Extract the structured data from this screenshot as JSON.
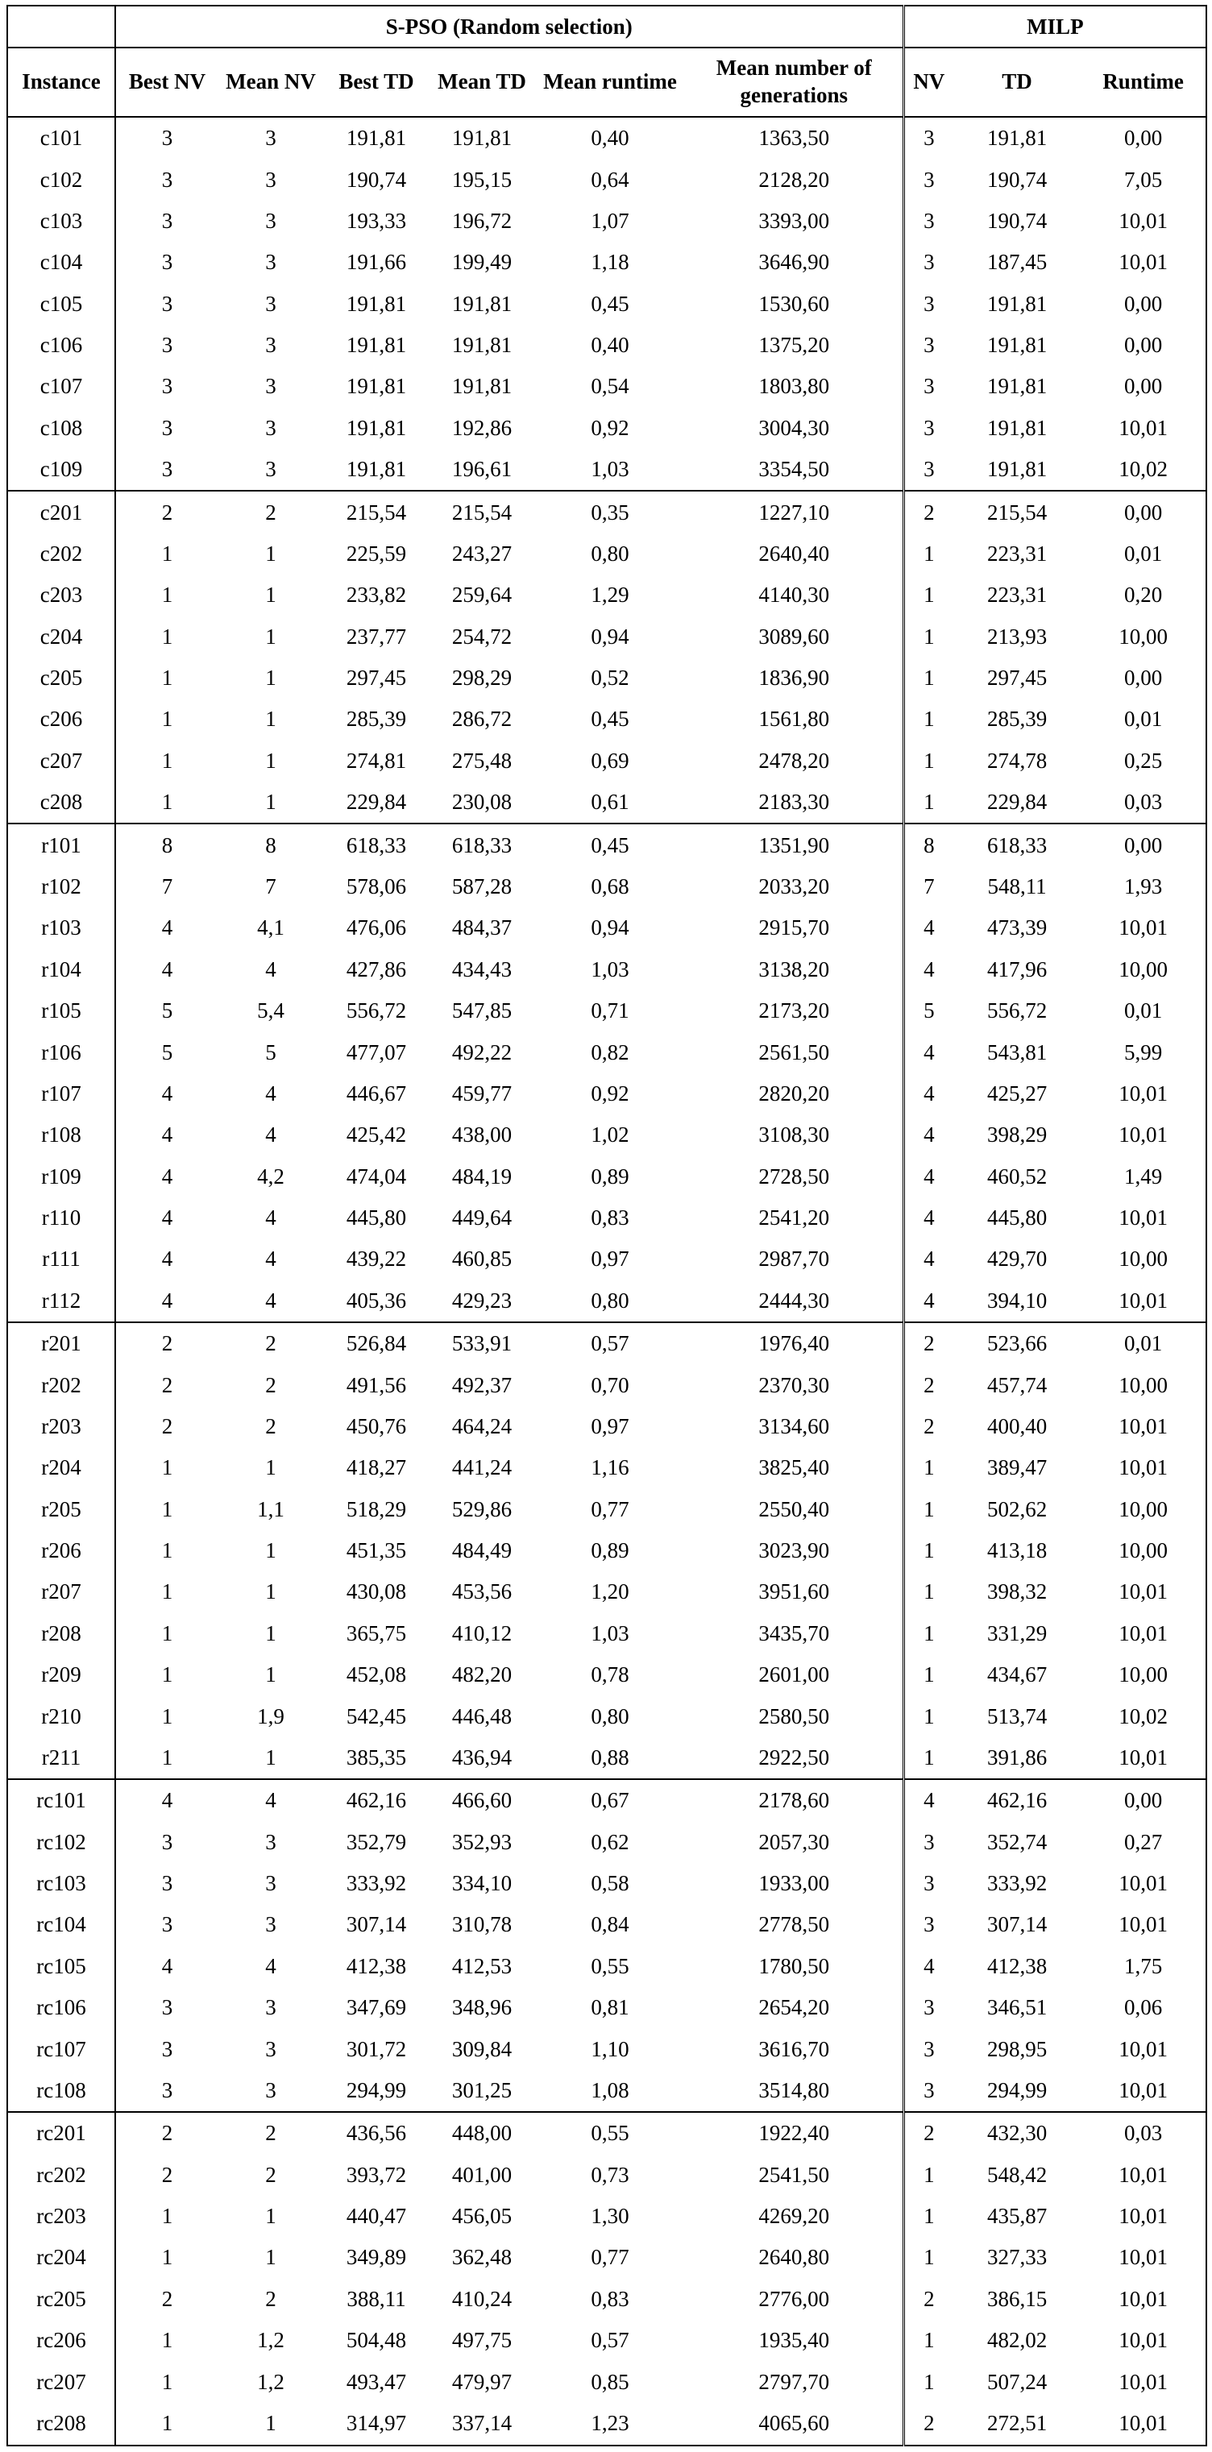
{
  "headers": {
    "group_spso": "S-PSO (Random selection)",
    "group_milp": "MILP",
    "instance": "Instance",
    "best_nv": "Best NV",
    "mean_nv": "Mean NV",
    "best_td": "Best TD",
    "mean_td": "Mean TD",
    "mean_runtime": "Mean runtime",
    "mean_generations": "Mean number of generations",
    "milp_nv": "NV",
    "milp_td": "TD",
    "milp_runtime": "Runtime"
  },
  "rows": [
    [
      "c101",
      "3",
      "3",
      "191,81",
      "191,81",
      "0,40",
      "1363,50",
      "3",
      "191,81",
      "0,00"
    ],
    [
      "c102",
      "3",
      "3",
      "190,74",
      "195,15",
      "0,64",
      "2128,20",
      "3",
      "190,74",
      "7,05"
    ],
    [
      "c103",
      "3",
      "3",
      "193,33",
      "196,72",
      "1,07",
      "3393,00",
      "3",
      "190,74",
      "10,01"
    ],
    [
      "c104",
      "3",
      "3",
      "191,66",
      "199,49",
      "1,18",
      "3646,90",
      "3",
      "187,45",
      "10,01"
    ],
    [
      "c105",
      "3",
      "3",
      "191,81",
      "191,81",
      "0,45",
      "1530,60",
      "3",
      "191,81",
      "0,00"
    ],
    [
      "c106",
      "3",
      "3",
      "191,81",
      "191,81",
      "0,40",
      "1375,20",
      "3",
      "191,81",
      "0,00"
    ],
    [
      "c107",
      "3",
      "3",
      "191,81",
      "191,81",
      "0,54",
      "1803,80",
      "3",
      "191,81",
      "0,00"
    ],
    [
      "c108",
      "3",
      "3",
      "191,81",
      "192,86",
      "0,92",
      "3004,30",
      "3",
      "191,81",
      "10,01"
    ],
    [
      "c109",
      "3",
      "3",
      "191,81",
      "196,61",
      "1,03",
      "3354,50",
      "3",
      "191,81",
      "10,02"
    ],
    [
      "c201",
      "2",
      "2",
      "215,54",
      "215,54",
      "0,35",
      "1227,10",
      "2",
      "215,54",
      "0,00"
    ],
    [
      "c202",
      "1",
      "1",
      "225,59",
      "243,27",
      "0,80",
      "2640,40",
      "1",
      "223,31",
      "0,01"
    ],
    [
      "c203",
      "1",
      "1",
      "233,82",
      "259,64",
      "1,29",
      "4140,30",
      "1",
      "223,31",
      "0,20"
    ],
    [
      "c204",
      "1",
      "1",
      "237,77",
      "254,72",
      "0,94",
      "3089,60",
      "1",
      "213,93",
      "10,00"
    ],
    [
      "c205",
      "1",
      "1",
      "297,45",
      "298,29",
      "0,52",
      "1836,90",
      "1",
      "297,45",
      "0,00"
    ],
    [
      "c206",
      "1",
      "1",
      "285,39",
      "286,72",
      "0,45",
      "1561,80",
      "1",
      "285,39",
      "0,01"
    ],
    [
      "c207",
      "1",
      "1",
      "274,81",
      "275,48",
      "0,69",
      "2478,20",
      "1",
      "274,78",
      "0,25"
    ],
    [
      "c208",
      "1",
      "1",
      "229,84",
      "230,08",
      "0,61",
      "2183,30",
      "1",
      "229,84",
      "0,03"
    ],
    [
      "r101",
      "8",
      "8",
      "618,33",
      "618,33",
      "0,45",
      "1351,90",
      "8",
      "618,33",
      "0,00"
    ],
    [
      "r102",
      "7",
      "7",
      "578,06",
      "587,28",
      "0,68",
      "2033,20",
      "7",
      "548,11",
      "1,93"
    ],
    [
      "r103",
      "4",
      "4,1",
      "476,06",
      "484,37",
      "0,94",
      "2915,70",
      "4",
      "473,39",
      "10,01"
    ],
    [
      "r104",
      "4",
      "4",
      "427,86",
      "434,43",
      "1,03",
      "3138,20",
      "4",
      "417,96",
      "10,00"
    ],
    [
      "r105",
      "5",
      "5,4",
      "556,72",
      "547,85",
      "0,71",
      "2173,20",
      "5",
      "556,72",
      "0,01"
    ],
    [
      "r106",
      "5",
      "5",
      "477,07",
      "492,22",
      "0,82",
      "2561,50",
      "4",
      "543,81",
      "5,99"
    ],
    [
      "r107",
      "4",
      "4",
      "446,67",
      "459,77",
      "0,92",
      "2820,20",
      "4",
      "425,27",
      "10,01"
    ],
    [
      "r108",
      "4",
      "4",
      "425,42",
      "438,00",
      "1,02",
      "3108,30",
      "4",
      "398,29",
      "10,01"
    ],
    [
      "r109",
      "4",
      "4,2",
      "474,04",
      "484,19",
      "0,89",
      "2728,50",
      "4",
      "460,52",
      "1,49"
    ],
    [
      "r110",
      "4",
      "4",
      "445,80",
      "449,64",
      "0,83",
      "2541,20",
      "4",
      "445,80",
      "10,01"
    ],
    [
      "r111",
      "4",
      "4",
      "439,22",
      "460,85",
      "0,97",
      "2987,70",
      "4",
      "429,70",
      "10,00"
    ],
    [
      "r112",
      "4",
      "4",
      "405,36",
      "429,23",
      "0,80",
      "2444,30",
      "4",
      "394,10",
      "10,01"
    ],
    [
      "r201",
      "2",
      "2",
      "526,84",
      "533,91",
      "0,57",
      "1976,40",
      "2",
      "523,66",
      "0,01"
    ],
    [
      "r202",
      "2",
      "2",
      "491,56",
      "492,37",
      "0,70",
      "2370,30",
      "2",
      "457,74",
      "10,00"
    ],
    [
      "r203",
      "2",
      "2",
      "450,76",
      "464,24",
      "0,97",
      "3134,60",
      "2",
      "400,40",
      "10,01"
    ],
    [
      "r204",
      "1",
      "1",
      "418,27",
      "441,24",
      "1,16",
      "3825,40",
      "1",
      "389,47",
      "10,01"
    ],
    [
      "r205",
      "1",
      "1,1",
      "518,29",
      "529,86",
      "0,77",
      "2550,40",
      "1",
      "502,62",
      "10,00"
    ],
    [
      "r206",
      "1",
      "1",
      "451,35",
      "484,49",
      "0,89",
      "3023,90",
      "1",
      "413,18",
      "10,00"
    ],
    [
      "r207",
      "1",
      "1",
      "430,08",
      "453,56",
      "1,20",
      "3951,60",
      "1",
      "398,32",
      "10,01"
    ],
    [
      "r208",
      "1",
      "1",
      "365,75",
      "410,12",
      "1,03",
      "3435,70",
      "1",
      "331,29",
      "10,01"
    ],
    [
      "r209",
      "1",
      "1",
      "452,08",
      "482,20",
      "0,78",
      "2601,00",
      "1",
      "434,67",
      "10,00"
    ],
    [
      "r210",
      "1",
      "1,9",
      "542,45",
      "446,48",
      "0,80",
      "2580,50",
      "1",
      "513,74",
      "10,02"
    ],
    [
      "r211",
      "1",
      "1",
      "385,35",
      "436,94",
      "0,88",
      "2922,50",
      "1",
      "391,86",
      "10,01"
    ],
    [
      "rc101",
      "4",
      "4",
      "462,16",
      "466,60",
      "0,67",
      "2178,60",
      "4",
      "462,16",
      "0,00"
    ],
    [
      "rc102",
      "3",
      "3",
      "352,79",
      "352,93",
      "0,62",
      "2057,30",
      "3",
      "352,74",
      "0,27"
    ],
    [
      "rc103",
      "3",
      "3",
      "333,92",
      "334,10",
      "0,58",
      "1933,00",
      "3",
      "333,92",
      "10,01"
    ],
    [
      "rc104",
      "3",
      "3",
      "307,14",
      "310,78",
      "0,84",
      "2778,50",
      "3",
      "307,14",
      "10,01"
    ],
    [
      "rc105",
      "4",
      "4",
      "412,38",
      "412,53",
      "0,55",
      "1780,50",
      "4",
      "412,38",
      "1,75"
    ],
    [
      "rc106",
      "3",
      "3",
      "347,69",
      "348,96",
      "0,81",
      "2654,20",
      "3",
      "346,51",
      "0,06"
    ],
    [
      "rc107",
      "3",
      "3",
      "301,72",
      "309,84",
      "1,10",
      "3616,70",
      "3",
      "298,95",
      "10,01"
    ],
    [
      "rc108",
      "3",
      "3",
      "294,99",
      "301,25",
      "1,08",
      "3514,80",
      "3",
      "294,99",
      "10,01"
    ],
    [
      "rc201",
      "2",
      "2",
      "436,56",
      "448,00",
      "0,55",
      "1922,40",
      "2",
      "432,30",
      "0,03"
    ],
    [
      "rc202",
      "2",
      "2",
      "393,72",
      "401,00",
      "0,73",
      "2541,50",
      "1",
      "548,42",
      "10,01"
    ],
    [
      "rc203",
      "1",
      "1",
      "440,47",
      "456,05",
      "1,30",
      "4269,20",
      "1",
      "435,87",
      "10,01"
    ],
    [
      "rc204",
      "1",
      "1",
      "349,89",
      "362,48",
      "0,77",
      "2640,80",
      "1",
      "327,33",
      "10,01"
    ],
    [
      "rc205",
      "2",
      "2",
      "388,11",
      "410,24",
      "0,83",
      "2776,00",
      "2",
      "386,15",
      "10,01"
    ],
    [
      "rc206",
      "1",
      "1,2",
      "504,48",
      "497,75",
      "0,57",
      "1935,40",
      "1",
      "482,02",
      "10,01"
    ],
    [
      "rc207",
      "1",
      "1,2",
      "493,47",
      "479,97",
      "0,85",
      "2797,70",
      "1",
      "507,24",
      "10,01"
    ],
    [
      "rc208",
      "1",
      "1",
      "314,97",
      "337,14",
      "1,23",
      "4065,60",
      "2",
      "272,51",
      "10,01"
    ]
  ],
  "group_starts": [
    "c101",
    "c201",
    "r101",
    "r201",
    "rc101",
    "rc201"
  ]
}
